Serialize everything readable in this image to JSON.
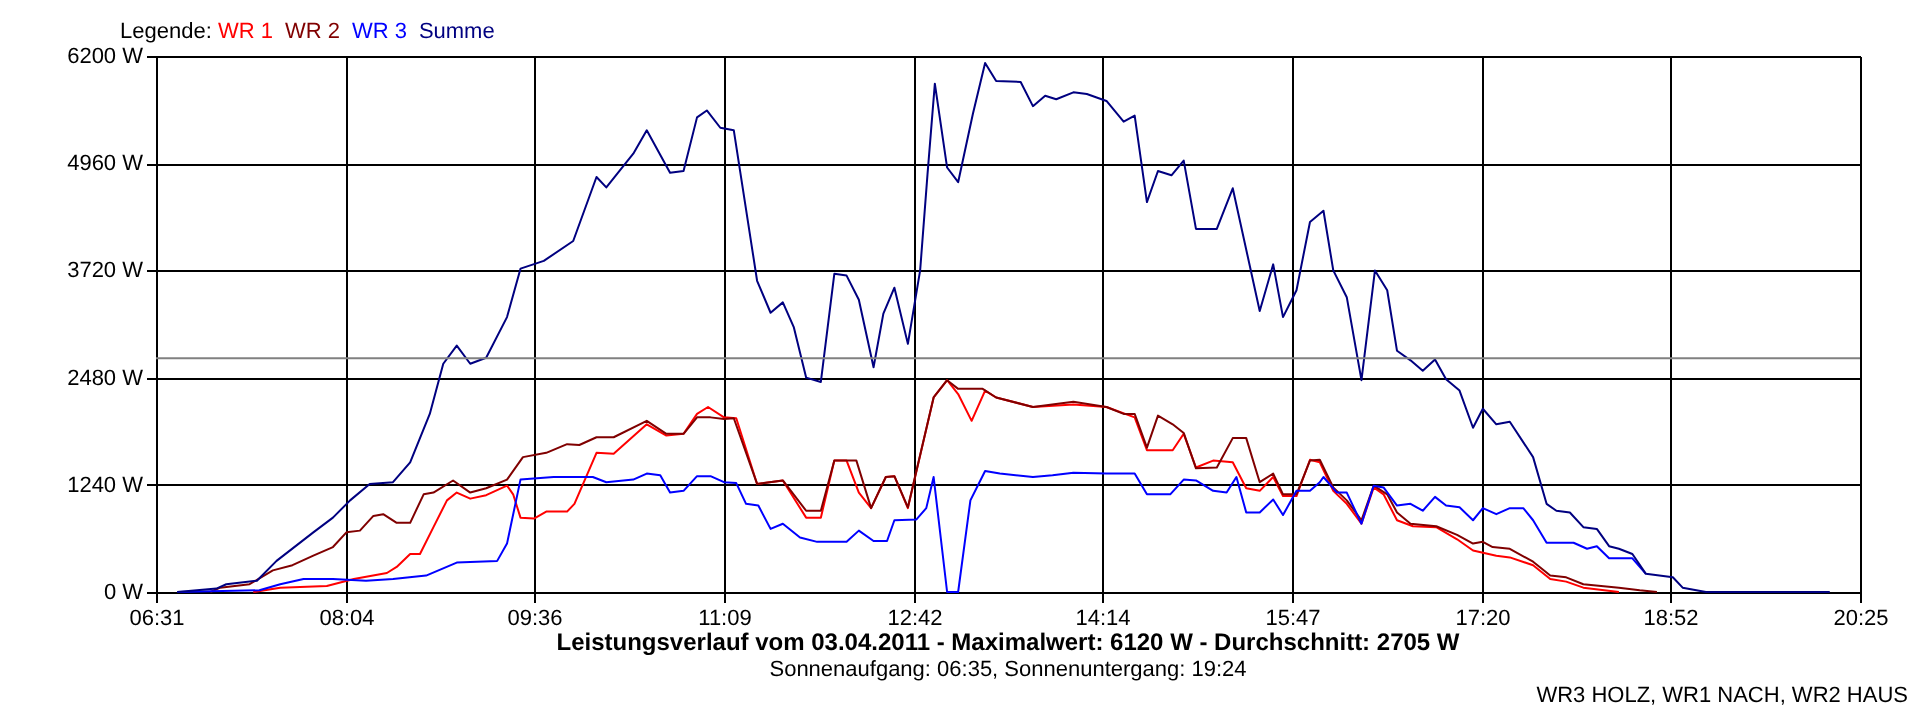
{
  "chart_data": {
    "type": "line",
    "title": "Leistungsverlauf vom 03.04.2011 - Maximalwert: 6120 W - Durchschnitt: 2705 W",
    "subtitle": "Sonnenaufgang: 06:35, Sonnenuntergang: 19:24",
    "legend_title": "Legende:",
    "annotations": [
      "WR3 HOLZ, WR1 NACH, WR2 HAUS"
    ],
    "legend": "top left",
    "grid": true,
    "xlim": [
      6.5167,
      20.4167
    ],
    "xticks": [
      {
        "value": 6.5167,
        "label": "06:31"
      },
      {
        "value": 8.0667,
        "label": "08:04"
      },
      {
        "value": 9.6,
        "label": "09:36"
      },
      {
        "value": 11.15,
        "label": "11:09"
      },
      {
        "value": 12.7,
        "label": "12:42"
      },
      {
        "value": 14.2333,
        "label": "14:14"
      },
      {
        "value": 15.7833,
        "label": "15:47"
      },
      {
        "value": 17.3333,
        "label": "17:20"
      },
      {
        "value": 18.8667,
        "label": "18:52"
      },
      {
        "value": 20.4167,
        "label": "20:25"
      }
    ],
    "ylim": [
      0,
      6200
    ],
    "yticks": [
      {
        "value": 0,
        "label": "0 W"
      },
      {
        "value": 1240,
        "label": "1240 W"
      },
      {
        "value": 2480,
        "label": "2480 W"
      },
      {
        "value": 3720,
        "label": "3720 W"
      },
      {
        "value": 4960,
        "label": "4960 W"
      },
      {
        "value": 6200,
        "label": "6200 W"
      }
    ],
    "ref_lines": [
      {
        "axis": "y",
        "value": 2705,
        "color": "#808080"
      }
    ],
    "series": [
      {
        "name": "WR 1",
        "color": "#ff0000",
        "x": [
          7.31,
          7.53,
          7.91,
          8.13,
          8.4,
          8.48,
          8.59,
          8.67,
          8.78,
          8.89,
          8.97,
          9.08,
          9.21,
          9.38,
          9.43,
          9.49,
          9.6,
          9.7,
          9.87,
          9.93,
          10.11,
          10.25,
          10.52,
          10.68,
          10.82,
          10.93,
          11.02,
          11.15,
          11.25,
          11.42,
          11.63,
          11.82,
          11.94,
          12.05,
          12.15,
          12.25,
          12.35,
          12.47,
          12.54,
          12.65,
          12.86,
          12.97,
          13.06,
          13.17,
          13.28,
          13.37,
          13.67,
          14.0,
          14.27,
          14.5,
          14.6,
          14.81,
          14.9,
          15.0,
          15.14,
          15.3,
          15.41,
          15.52,
          15.63,
          15.71,
          15.82,
          15.93,
          16.01,
          16.12,
          16.23,
          16.35,
          16.45,
          16.53,
          16.64,
          16.77,
          16.96,
          17.13,
          17.26,
          17.45,
          17.56,
          17.75,
          17.89,
          18.02,
          18.16,
          18.45
        ],
        "values": [
          0,
          50,
          70,
          150,
          220,
          290,
          440,
          440,
          750,
          1060,
          1150,
          1080,
          1120,
          1230,
          1130,
          860,
          850,
          930,
          930,
          1020,
          1610,
          1600,
          1940,
          1810,
          1830,
          2060,
          2140,
          2020,
          2010,
          1250,
          1290,
          860,
          860,
          1520,
          1520,
          1150,
          970,
          1330,
          1340,
          970,
          2250,
          2450,
          2290,
          1980,
          2330,
          2250,
          2140,
          2170,
          2140,
          2020,
          1640,
          1640,
          1830,
          1440,
          1520,
          1500,
          1200,
          1170,
          1330,
          1110,
          1110,
          1530,
          1500,
          1170,
          1020,
          790,
          1210,
          1130,
          830,
          760,
          750,
          610,
          480,
          420,
          400,
          310,
          150,
          120,
          50,
          0
        ]
      },
      {
        "name": "WR 2",
        "color": "#800000",
        "x": [
          6.96,
          7.04,
          7.28,
          7.47,
          7.63,
          7.8,
          7.96,
          8.07,
          8.18,
          8.29,
          8.37,
          8.48,
          8.59,
          8.7,
          8.78,
          8.94,
          9.08,
          9.21,
          9.38,
          9.51,
          9.7,
          9.87,
          9.97,
          10.11,
          10.25,
          10.52,
          10.68,
          10.82,
          10.93,
          11.04,
          11.15,
          11.23,
          11.42,
          11.63,
          11.82,
          11.94,
          12.05,
          12.23,
          12.35,
          12.47,
          12.54,
          12.65,
          12.86,
          12.97,
          13.06,
          13.26,
          13.37,
          13.67,
          14.0,
          14.27,
          14.41,
          14.5,
          14.6,
          14.69,
          14.81,
          14.9,
          15.0,
          15.17,
          15.3,
          15.41,
          15.52,
          15.63,
          15.71,
          15.82,
          15.93,
          16.01,
          16.12,
          16.23,
          16.35,
          16.45,
          16.56,
          16.64,
          16.75,
          16.96,
          17.13,
          17.26,
          17.34,
          17.42,
          17.56,
          17.75,
          17.89,
          18.02,
          18.16,
          18.45,
          18.62,
          18.76
        ],
        "values": [
          0,
          50,
          90,
          250,
          310,
          420,
          520,
          690,
          710,
          880,
          900,
          800,
          800,
          1130,
          1150,
          1290,
          1150,
          1200,
          1300,
          1560,
          1610,
          1710,
          1700,
          1790,
          1790,
          1980,
          1830,
          1830,
          2020,
          2020,
          2000,
          2010,
          1250,
          1290,
          940,
          940,
          1520,
          1520,
          970,
          1330,
          1340,
          980,
          2250,
          2450,
          2350,
          2350,
          2250,
          2140,
          2200,
          2140,
          2060,
          2060,
          1670,
          2040,
          1940,
          1840,
          1430,
          1440,
          1780,
          1780,
          1270,
          1370,
          1130,
          1130,
          1520,
          1530,
          1210,
          1060,
          830,
          1230,
          1130,
          920,
          790,
          760,
          660,
          560,
          580,
          520,
          500,
          350,
          190,
          170,
          90,
          50,
          20,
          0
        ]
      },
      {
        "name": "WR 3",
        "color": "#0000ff",
        "x": [
          6.69,
          7.36,
          7.53,
          7.72,
          7.96,
          8.23,
          8.45,
          8.72,
          8.97,
          9.3,
          9.38,
          9.49,
          9.76,
          10.08,
          10.19,
          10.41,
          10.52,
          10.63,
          10.71,
          10.82,
          10.93,
          11.04,
          11.15,
          11.25,
          11.33,
          11.43,
          11.53,
          11.63,
          11.77,
          11.91,
          12.15,
          12.25,
          12.37,
          12.48,
          12.54,
          12.72,
          12.8,
          12.86,
          12.97,
          13.06,
          13.16,
          13.28,
          13.4,
          13.67,
          13.83,
          14.0,
          14.27,
          14.5,
          14.6,
          14.79,
          14.9,
          15.0,
          15.14,
          15.25,
          15.33,
          15.41,
          15.52,
          15.63,
          15.71,
          15.82,
          15.93,
          16.01,
          16.04,
          16.15,
          16.23,
          16.35,
          16.45,
          16.53,
          16.64,
          16.75,
          16.85,
          16.95,
          17.04,
          17.15,
          17.26,
          17.34,
          17.45,
          17.56,
          17.67,
          17.75,
          17.86,
          18.08,
          18.19,
          18.27,
          18.37,
          18.56,
          18.67
        ],
        "values": [
          0,
          20,
          90,
          150,
          150,
          130,
          150,
          190,
          340,
          360,
          560,
          1300,
          1330,
          1330,
          1270,
          1300,
          1370,
          1350,
          1150,
          1170,
          1340,
          1340,
          1270,
          1260,
          1020,
          1000,
          730,
          790,
          630,
          580,
          580,
          710,
          590,
          590,
          830,
          840,
          970,
          1330,
          0,
          0,
          1060,
          1400,
          1370,
          1330,
          1350,
          1380,
          1370,
          1370,
          1130,
          1130,
          1300,
          1290,
          1170,
          1150,
          1330,
          920,
          920,
          1070,
          890,
          1170,
          1170,
          1270,
          1330,
          1150,
          1150,
          790,
          1230,
          1210,
          1000,
          1020,
          940,
          1100,
          1000,
          980,
          830,
          970,
          900,
          970,
          970,
          830,
          570,
          570,
          500,
          530,
          390,
          390,
          210
        ]
      },
      {
        "name": "Summe",
        "color": "#000080",
        "x": [
          6.69,
          7.01,
          7.09,
          7.34,
          7.5,
          7.8,
          7.96,
          8.1,
          8.26,
          8.45,
          8.59,
          8.75,
          8.86,
          8.97,
          9.08,
          9.21,
          9.38,
          9.49,
          9.68,
          9.92,
          10.11,
          10.19,
          10.41,
          10.52,
          10.71,
          10.82,
          10.93,
          11.01,
          11.12,
          11.23,
          11.42,
          11.53,
          11.63,
          11.72,
          11.82,
          11.94,
          12.05,
          12.15,
          12.25,
          12.37,
          12.45,
          12.54,
          12.65,
          12.75,
          12.81,
          12.87,
          12.97,
          13.06,
          13.18,
          13.28,
          13.37,
          13.57,
          13.67,
          13.77,
          13.86,
          14.0,
          14.11,
          14.27,
          14.41,
          14.5,
          14.6,
          14.69,
          14.8,
          14.9,
          15.0,
          15.17,
          15.3,
          15.52,
          15.63,
          15.71,
          15.82,
          15.93,
          16.04,
          16.12,
          16.23,
          16.35,
          16.46,
          16.56,
          16.64,
          16.75,
          16.85,
          16.95,
          17.04,
          17.15,
          17.26,
          17.34,
          17.45,
          17.56,
          17.75,
          17.86,
          17.94,
          18.05,
          18.16,
          18.27,
          18.37,
          18.45,
          18.56,
          18.67,
          18.89,
          18.97,
          19.16,
          20.17
        ],
        "values": [
          0,
          40,
          90,
          130,
          360,
          690,
          860,
          1060,
          1250,
          1270,
          1500,
          2060,
          2640,
          2850,
          2640,
          2710,
          3180,
          3740,
          3830,
          4060,
          4800,
          4680,
          5070,
          5340,
          4850,
          4870,
          5490,
          5570,
          5370,
          5340,
          3600,
          3230,
          3350,
          3060,
          2480,
          2430,
          3680,
          3660,
          3380,
          2600,
          3220,
          3520,
          2870,
          3720,
          4830,
          5880,
          4910,
          4740,
          5530,
          6120,
          5910,
          5900,
          5620,
          5740,
          5700,
          5780,
          5760,
          5680,
          5440,
          5510,
          4510,
          4870,
          4820,
          4990,
          4200,
          4200,
          4670,
          3250,
          3790,
          3180,
          3490,
          4280,
          4410,
          3720,
          3410,
          2450,
          3720,
          3490,
          2790,
          2680,
          2560,
          2690,
          2460,
          2330,
          1900,
          2120,
          1940,
          1970,
          1560,
          1020,
          940,
          920,
          750,
          730,
          530,
          500,
          440,
          210,
          170,
          50,
          0,
          0
        ]
      }
    ]
  }
}
